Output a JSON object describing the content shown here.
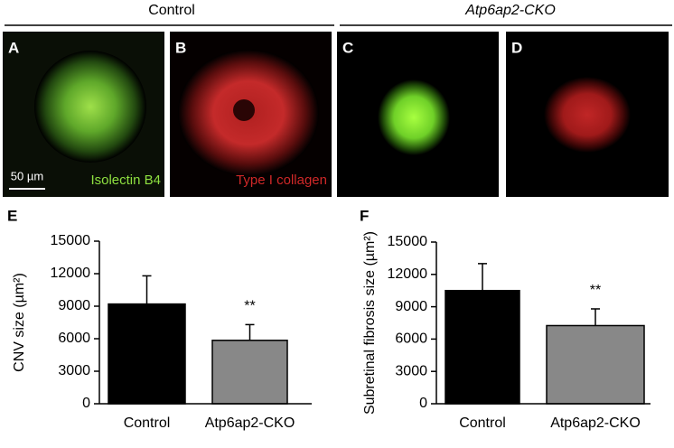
{
  "figure": {
    "headers": [
      "Control",
      "Atp6ap2-CKO"
    ],
    "panels": [
      {
        "label": "A",
        "caption": "Isolectin B4"
      },
      {
        "label": "B",
        "caption": "Type I collagen"
      },
      {
        "label": "C"
      },
      {
        "label": "D"
      }
    ],
    "scale_bar": "50 µm"
  },
  "chart_data": [
    {
      "type": "bar",
      "panel": "E",
      "ylabel": "CNV size (µm²)",
      "categories": [
        "Control",
        "Atp6ap2-CKO"
      ],
      "values": [
        9200,
        5850
      ],
      "errors": [
        2600,
        1450
      ],
      "colors": [
        "#000000",
        "#888888"
      ],
      "value_annotations": [
        null,
        "**"
      ],
      "ylim": [
        0,
        15000
      ],
      "yticks": [
        0,
        3000,
        6000,
        9000,
        12000,
        15000
      ]
    },
    {
      "type": "bar",
      "panel": "F",
      "ylabel": "Subretinal fibrosis size (µm²)",
      "categories": [
        "Control",
        "Atp6ap2-CKO"
      ],
      "values": [
        10500,
        7250
      ],
      "errors": [
        2500,
        1550
      ],
      "colors": [
        "#000000",
        "#888888"
      ],
      "value_annotations": [
        null,
        "**"
      ],
      "ylim": [
        0,
        15000
      ],
      "yticks": [
        0,
        3000,
        6000,
        9000,
        12000,
        15000
      ]
    }
  ]
}
